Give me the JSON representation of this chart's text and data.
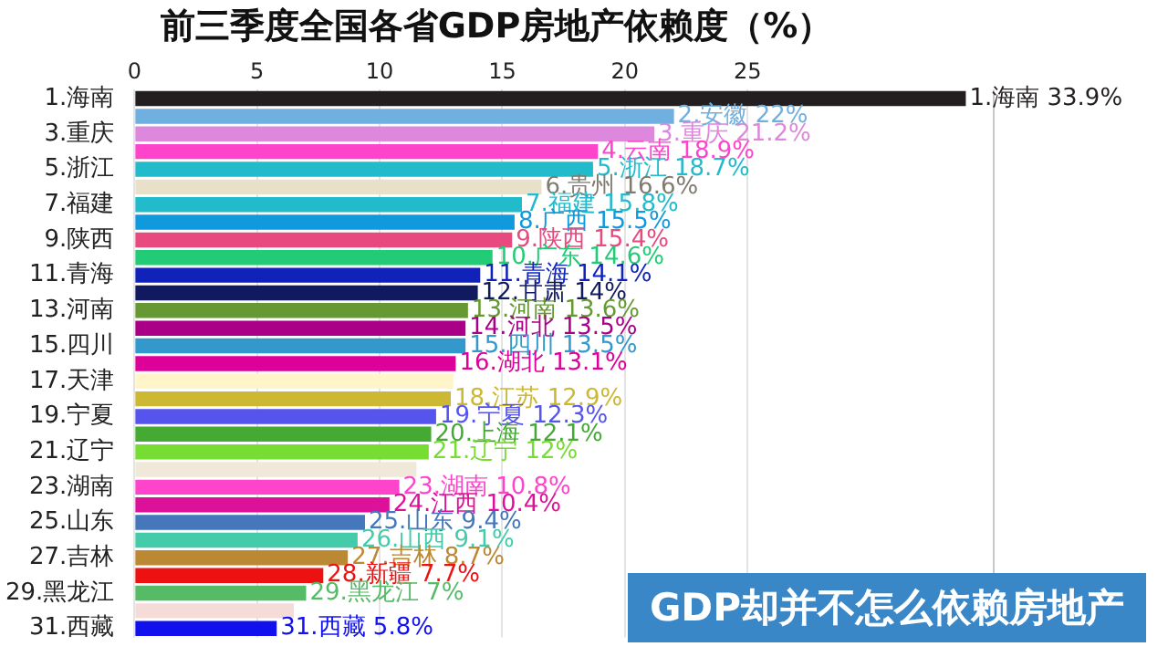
{
  "chart_data": {
    "type": "bar",
    "orientation": "horizontal",
    "title": "前三季度全国各省GDP房地产依赖度（%）",
    "categories": [
      "1.海南",
      null,
      "3.重庆",
      null,
      "5.浙江",
      null,
      "7.福建",
      null,
      "9.陕西",
      null,
      "11.青海",
      null,
      "13.河南",
      null,
      "15.四川",
      null,
      "17.天津",
      null,
      "19.宁夏",
      null,
      "21.辽宁",
      null,
      "23.湖南",
      null,
      "25.山东",
      null,
      "27.吉林",
      null,
      "29.黑龙江",
      null,
      "31.西藏"
    ],
    "values": [
      33.9,
      22,
      21.2,
      18.9,
      18.7,
      16.6,
      15.8,
      15.5,
      15.4,
      14.6,
      14.1,
      14,
      13.6,
      13.5,
      13.5,
      13.1,
      13.0,
      12.9,
      12.3,
      12.1,
      12,
      11.5,
      10.8,
      10.4,
      9.4,
      9.1,
      8.7,
      7.7,
      7,
      6.5,
      5.8
    ],
    "value_labels": [
      "1.海南 33.9%",
      "2.安徽 22%",
      "3.重庆 21.2%",
      "4.云南 18.9%",
      "5.浙江 18.7%",
      "6.贵州 16.6%",
      "7.福建 15.8%",
      "8.广西 15.5%",
      "9.陕西 15.4%",
      "10.广东 14.6%",
      "11.青海 14.1%",
      "12.甘肃 14%",
      "13.河南 13.6%",
      "14.河北 13.5%",
      "15.四川 13.5%",
      "16.湖北 13.1%",
      null,
      "18.江苏 12.9%",
      "19.宁夏 12.3%",
      "20.上海 12.1%",
      "21.辽宁 12%",
      null,
      "23.湖南 10.8%",
      "24.江西 10.4%",
      "25.山东 9.4%",
      "26.山西 9.1%",
      "27.吉林 8.7%",
      "28.新疆 7.7%",
      "29.黑龙江 7%",
      null,
      "31.西藏 5.8%"
    ],
    "colors": [
      "#231f20",
      "#6fb0e0",
      "#dd88dd",
      "#ff44cc",
      "#22bbcc",
      "#e8e0c8",
      "#22bbcc",
      "#1199dd",
      "#e84a7f",
      "#22cc77",
      "#1122bb",
      "#111a5e",
      "#669933",
      "#aa0088",
      "#3399cc",
      "#dd0099",
      "#fff5c8",
      "#ccb833",
      "#5555ee",
      "#44aa33",
      "#77dd33",
      "#f0e8d8",
      "#ff44cc",
      "#dd1199",
      "#4477bb",
      "#44ccaa",
      "#bb8833",
      "#ee1111",
      "#55bb66",
      "#f5dcd8",
      "#1111ee"
    ],
    "xlim": [
      0,
      35
    ],
    "xticks": [
      0,
      5,
      10,
      15,
      20,
      25
    ],
    "grid": "x",
    "annotations": [
      "GDP却并不怎么依赖房地产"
    ]
  }
}
